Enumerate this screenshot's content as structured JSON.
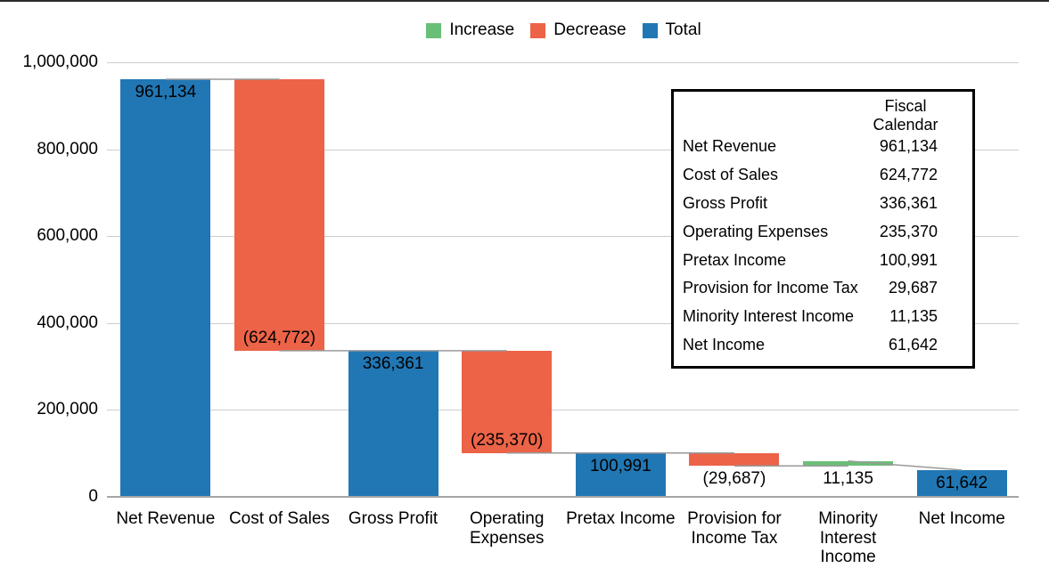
{
  "page": {
    "background": "#ffffff",
    "top_edge_color": "#2b2b2b"
  },
  "chart_data": {
    "type": "waterfall",
    "title": "",
    "legend_position": "top",
    "grid": true,
    "legend": [
      {
        "label": "Increase",
        "type": "increase"
      },
      {
        "label": "Decrease",
        "type": "decrease"
      },
      {
        "label": "Total",
        "type": "total"
      }
    ],
    "colors": {
      "increase": "#6abf77",
      "decrease": "#ec6347",
      "total": "#2177b4",
      "gridline": "#cdcdcd",
      "axis_line": "#a6a6a6",
      "connector": "#999999"
    },
    "y_axis": {
      "min": 0,
      "max": 1000000,
      "tick_interval": 200000,
      "ticks": [
        {
          "value": 0,
          "label": "0"
        },
        {
          "value": 200000,
          "label": "200,000"
        },
        {
          "value": 400000,
          "label": "400,000"
        },
        {
          "value": 600000,
          "label": "600,000"
        },
        {
          "value": 800000,
          "label": "800,000"
        },
        {
          "value": 1000000,
          "label": "1,000,000"
        }
      ]
    },
    "series": [
      {
        "category": "Net Revenue",
        "label_lines": [
          "Net Revenue"
        ],
        "type": "total",
        "value": 961134,
        "data_label": "961,134",
        "data_label_pos": "inside-top"
      },
      {
        "category": "Cost of Sales",
        "label_lines": [
          "Cost of Sales"
        ],
        "type": "decrease",
        "value": 624772,
        "data_label": "(624,772)",
        "data_label_pos": "inside-bottom"
      },
      {
        "category": "Gross Profit",
        "label_lines": [
          "Gross Profit"
        ],
        "type": "total",
        "value": 336361,
        "data_label": "336,361",
        "data_label_pos": "inside-top"
      },
      {
        "category": "Operating Expenses",
        "label_lines": [
          "Operating",
          "Expenses"
        ],
        "type": "decrease",
        "value": 235370,
        "data_label": "(235,370)",
        "data_label_pos": "inside-bottom"
      },
      {
        "category": "Pretax Income",
        "label_lines": [
          "Pretax Income"
        ],
        "type": "total",
        "value": 100991,
        "data_label": "100,991",
        "data_label_pos": "inside-top"
      },
      {
        "category": "Provision for Income Tax",
        "label_lines": [
          "Provision for",
          "Income Tax"
        ],
        "type": "decrease",
        "value": 29687,
        "data_label": "(29,687)",
        "data_label_pos": "below"
      },
      {
        "category": "Minority Interest Income",
        "label_lines": [
          "Minority",
          "Interest",
          "Income"
        ],
        "type": "increase",
        "value": 11135,
        "data_label": "11,135",
        "data_label_pos": "below"
      },
      {
        "category": "Net Income",
        "label_lines": [
          "Net Income"
        ],
        "type": "total",
        "value": 61642,
        "data_label": "61,642",
        "data_label_pos": "inside-middle"
      }
    ]
  },
  "summary_table": {
    "header": {
      "line1": "Fiscal",
      "line2": "Calendar"
    },
    "rows": [
      {
        "label": "Net Revenue",
        "value": "961,134"
      },
      {
        "label": "Cost of Sales",
        "value": "624,772"
      },
      {
        "label": "Gross Profit",
        "value": "336,361"
      },
      {
        "label": "Operating Expenses",
        "value": "235,370"
      },
      {
        "label": "Pretax Income",
        "value": "100,991"
      },
      {
        "label": "Provision for Income Tax",
        "value": "29,687"
      },
      {
        "label": "Minority Interest Income",
        "value": "11,135"
      },
      {
        "label": "Net Income",
        "value": "61,642"
      }
    ]
  }
}
